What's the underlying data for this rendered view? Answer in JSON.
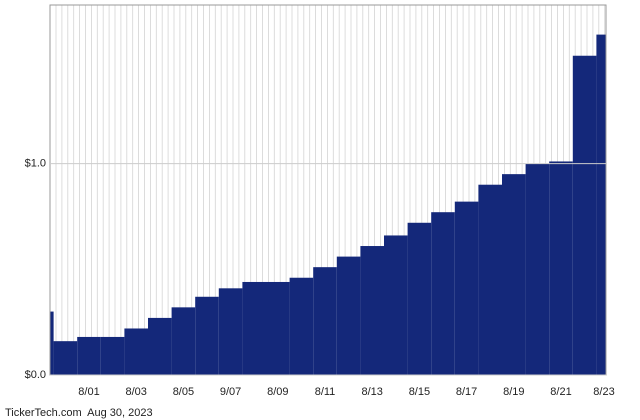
{
  "chart_data": {
    "type": "bar",
    "categories": [
      null,
      null,
      "8/01",
      null,
      "8/03",
      null,
      "8/05",
      null,
      "9/07",
      null,
      "8/09",
      null,
      "8/11",
      null,
      "8/13",
      null,
      "8/15",
      null,
      "8/17",
      null,
      "8/19",
      null,
      "8/21",
      null,
      "8/23"
    ],
    "values": [
      0.3,
      0.16,
      0.18,
      0.18,
      0.22,
      0.27,
      0.32,
      0.37,
      0.41,
      0.44,
      0.44,
      0.46,
      0.51,
      0.56,
      0.61,
      0.66,
      0.72,
      0.77,
      0.82,
      0.9,
      0.95,
      1.0,
      1.01,
      1.51,
      1.61
    ],
    "color": "#14287a",
    "ylim": [
      0,
      1.75
    ],
    "yticks": [
      {
        "value": 0,
        "label": "$0.0"
      },
      {
        "value": 1,
        "label": "$1.0"
      }
    ],
    "grid": true,
    "footer": "TickerTech.com  Aug 30, 2023"
  }
}
